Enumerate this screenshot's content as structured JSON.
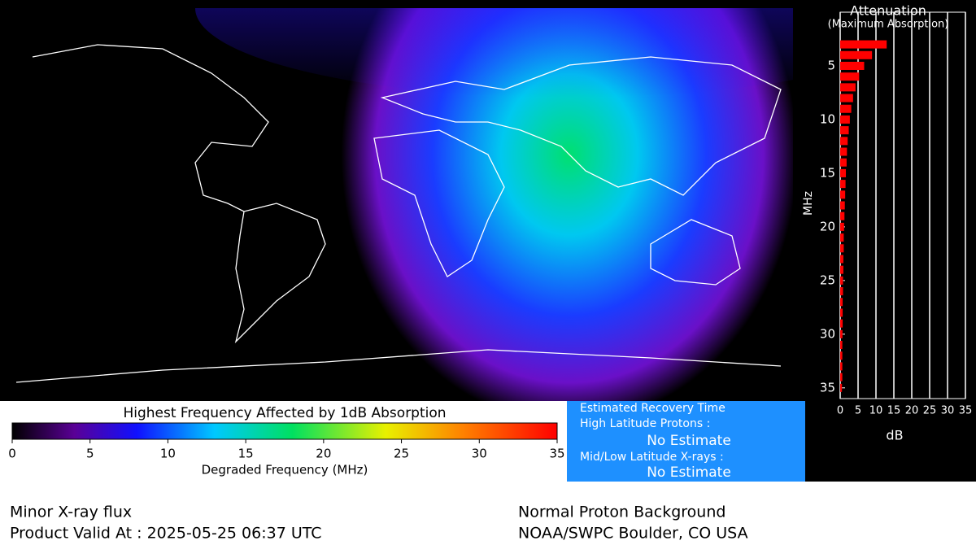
{
  "colorbar": {
    "title": "Highest Frequency Affected by 1dB Absorption",
    "xlabel": "Degraded Frequency (MHz)",
    "xlim": [
      0,
      35
    ],
    "xticks": [
      0,
      5,
      10,
      15,
      20,
      25,
      30,
      35
    ],
    "colormap": [
      {
        "value": 0,
        "color": "#000000"
      },
      {
        "value": 4,
        "color": "#5a0096"
      },
      {
        "value": 8,
        "color": "#1010ff"
      },
      {
        "value": 13,
        "color": "#00c8ff"
      },
      {
        "value": 18,
        "color": "#00e060"
      },
      {
        "value": 24,
        "color": "#e8f000"
      },
      {
        "value": 29,
        "color": "#ff8000"
      },
      {
        "value": 35,
        "color": "#ff0000"
      }
    ]
  },
  "chart_data": {
    "type": "bar",
    "orientation": "horizontal",
    "title": "Attenuation",
    "subtitle": "(Maximum Absorption)",
    "xlabel": "dB",
    "ylabel": "MHz",
    "x": [
      3,
      4,
      5,
      6,
      7,
      8,
      9,
      10,
      11,
      12,
      13,
      14,
      15,
      16,
      17,
      18,
      19,
      20,
      21,
      22,
      23,
      24,
      25,
      26,
      27,
      28,
      29,
      30,
      31,
      32,
      33,
      34,
      35
    ],
    "values": [
      13.0,
      8.9,
      6.7,
      5.3,
      4.3,
      3.6,
      3.1,
      2.7,
      2.4,
      2.1,
      1.9,
      1.8,
      1.6,
      1.5,
      1.4,
      1.3,
      1.2,
      1.1,
      1.0,
      1.0,
      0.9,
      0.9,
      0.8,
      0.8,
      0.7,
      0.7,
      0.7,
      0.65,
      0.6,
      0.6,
      0.6,
      0.6,
      0.5
    ],
    "color": "#ff0000",
    "xlim": [
      0,
      35
    ],
    "xticks": [
      0,
      5,
      10,
      15,
      20,
      25,
      30,
      35
    ],
    "ylim": [
      0,
      36
    ],
    "yticks": [
      5,
      10,
      15,
      20,
      25,
      30,
      35
    ],
    "grid": true
  },
  "recovery": {
    "title": "Estimated Recovery Time",
    "high_label": "High Latitude Protons :",
    "high_value": "No Estimate",
    "mid_label": "Mid/Low Latitude X-rays :",
    "mid_value": "No Estimate"
  },
  "footer": {
    "left": [
      "Minor X-ray flux",
      "Product Valid At : 2025-05-25 06:37 UTC"
    ],
    "right": [
      "Normal Proton Background",
      "NOAA/SWPC Boulder, CO USA"
    ]
  }
}
